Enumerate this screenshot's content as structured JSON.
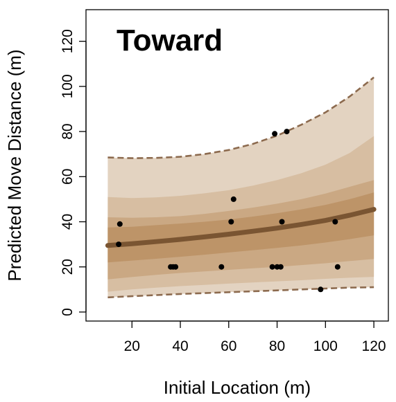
{
  "chart_data": {
    "type": "scatter",
    "title": "Toward",
    "xlabel": "Initial Location (m)",
    "ylabel": "Predicted Move Distance (m)",
    "xlim": [
      1,
      126
    ],
    "ylim": [
      -4,
      134
    ],
    "xticks": [
      20,
      40,
      60,
      80,
      100,
      120
    ],
    "yticks": [
      0,
      20,
      40,
      60,
      80,
      100,
      120
    ],
    "grid": false,
    "colors": {
      "band_outer": "#e3d3c1",
      "band_2": "#d7bea2",
      "band_3": "#caa883",
      "band_inner": "#bd9468",
      "mean_line": "#7a5532",
      "bound_line": "#8c6a4e",
      "points": "#000000"
    },
    "curve_x": [
      10,
      20,
      30,
      40,
      50,
      60,
      70,
      80,
      90,
      100,
      110,
      120
    ],
    "mean": [
      29.5,
      30.3,
      31.2,
      32.2,
      33.3,
      34.5,
      35.8,
      37.2,
      38.8,
      40.6,
      42.9,
      45.5
    ],
    "bands": [
      {
        "lower": [
          6.5,
          7.0,
          7.5,
          8.0,
          8.4,
          8.8,
          9.2,
          9.6,
          10.0,
          10.4,
          10.8,
          11.0
        ],
        "upper": [
          68.5,
          68.2,
          68.3,
          68.8,
          70.0,
          71.8,
          74.5,
          78.2,
          83.0,
          88.5,
          95.5,
          104.0
        ]
      },
      {
        "lower": [
          9.0,
          10.0,
          10.8,
          11.5,
          12.0,
          12.6,
          13.1,
          13.6,
          14.1,
          14.7,
          15.2,
          15.6
        ],
        "upper": [
          51.0,
          50.5,
          50.8,
          51.5,
          52.6,
          54.0,
          56.0,
          58.5,
          61.5,
          65.3,
          70.5,
          78.0
        ]
      },
      {
        "lower": [
          14.5,
          15.5,
          16.5,
          17.3,
          18.0,
          18.7,
          19.4,
          20.0,
          20.8,
          21.6,
          22.6,
          23.5
        ],
        "upper": [
          42.0,
          41.8,
          42.0,
          42.5,
          43.5,
          44.8,
          46.3,
          48.0,
          50.0,
          52.5,
          55.5,
          58.5
        ]
      },
      {
        "lower": [
          22.0,
          22.8,
          23.6,
          24.5,
          25.4,
          26.4,
          27.4,
          28.4,
          29.5,
          30.8,
          32.3,
          34.0
        ],
        "upper": [
          37.5,
          37.8,
          38.5,
          39.2,
          40.0,
          41.0,
          42.3,
          43.8,
          45.5,
          47.5,
          50.0,
          53.0
        ]
      }
    ],
    "points": [
      {
        "x": 14.5,
        "y": 30
      },
      {
        "x": 15,
        "y": 39
      },
      {
        "x": 36,
        "y": 20
      },
      {
        "x": 37,
        "y": 20
      },
      {
        "x": 38,
        "y": 20
      },
      {
        "x": 57,
        "y": 20
      },
      {
        "x": 61,
        "y": 40
      },
      {
        "x": 62,
        "y": 50
      },
      {
        "x": 78,
        "y": 20
      },
      {
        "x": 79,
        "y": 79
      },
      {
        "x": 80,
        "y": 20
      },
      {
        "x": 81.5,
        "y": 20
      },
      {
        "x": 82,
        "y": 40
      },
      {
        "x": 84,
        "y": 80
      },
      {
        "x": 98,
        "y": 10
      },
      {
        "x": 104,
        "y": 40
      },
      {
        "x": 105,
        "y": 20
      }
    ]
  }
}
